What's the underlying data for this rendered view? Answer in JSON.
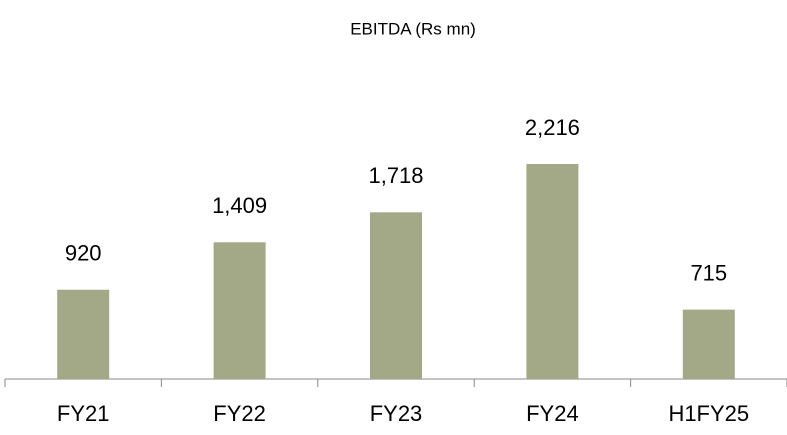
{
  "chart_data": {
    "type": "bar",
    "title": "EBITDA (Rs mn)",
    "categories": [
      "FY21",
      "FY22",
      "FY23",
      "FY24",
      "H1FY25"
    ],
    "values": [
      920,
      1409,
      1718,
      2216,
      715
    ],
    "value_labels": [
      "920",
      "1,409",
      "1,718",
      "2,216",
      "715"
    ],
    "color": "#a3a886"
  }
}
